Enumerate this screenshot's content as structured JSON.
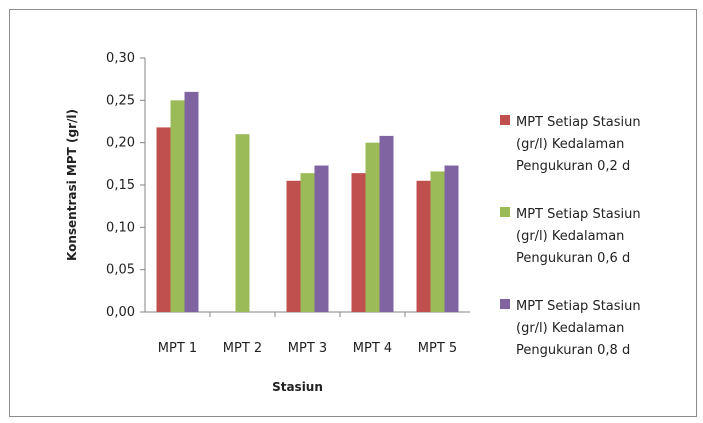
{
  "chart_data": {
    "type": "bar",
    "categories": [
      "MPT 1",
      "MPT 2",
      "MPT 3",
      "MPT 4",
      "MPT 5"
    ],
    "series": [
      {
        "name": "MPT Setiap Stasiun (gr/l) Kedalaman Pengukuran 0,2 d",
        "name_lines": [
          "MPT Setiap Stasiun",
          "(gr/l) Kedalaman",
          "Pengukuran 0,2 d"
        ],
        "color": "#c0504d",
        "values": [
          0.218,
          null,
          0.155,
          0.164,
          0.155
        ]
      },
      {
        "name": "MPT Setiap Stasiun (gr/l) Kedalaman Pengukuran 0,6 d",
        "name_lines": [
          "MPT Setiap Stasiun",
          "(gr/l) Kedalaman",
          "Pengukuran 0,6 d"
        ],
        "color": "#9bbb59",
        "values": [
          0.25,
          0.21,
          0.164,
          0.2,
          0.166
        ]
      },
      {
        "name": "MPT Setiap Stasiun (gr/l) Kedalaman Pengukuran 0,8 d",
        "name_lines": [
          "MPT Setiap Stasiun",
          "(gr/l) Kedalaman",
          "Pengukuran 0,8 d"
        ],
        "color": "#8064a2",
        "values": [
          0.26,
          null,
          0.173,
          0.208,
          0.173
        ]
      }
    ],
    "y_ticks": [
      "0,00",
      "0,05",
      "0,10",
      "0,15",
      "0,20",
      "0,25",
      "0,30"
    ],
    "xlabel": "Stasiun",
    "ylabel": "Konsentrasi MPT  (gr/l)",
    "ylim": [
      0,
      0.3
    ],
    "grid": false,
    "legend": "right"
  }
}
